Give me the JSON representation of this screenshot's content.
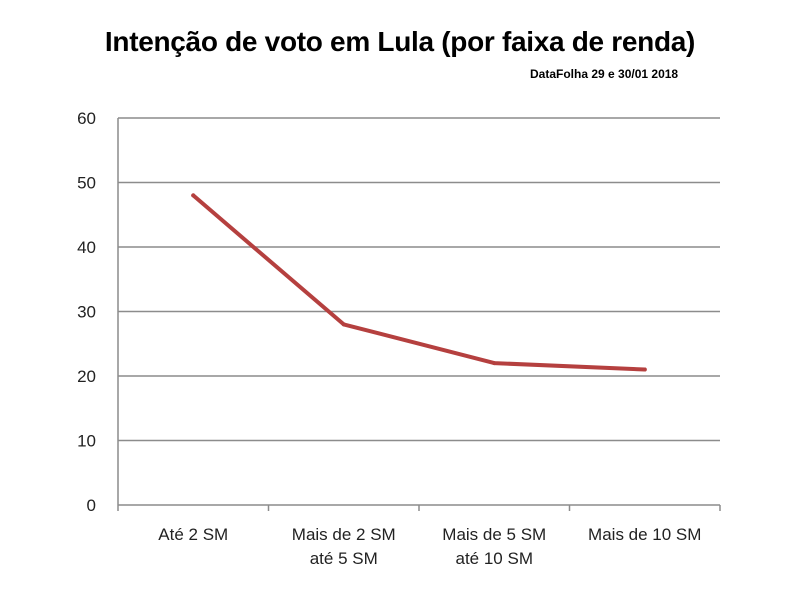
{
  "chart_data": {
    "type": "line",
    "title": "Intenção de voto em Lula (por faixa de renda)",
    "subtitle": "DataFolha 29 e 30/01 2018",
    "categories": [
      [
        "Até 2 SM"
      ],
      [
        "Mais de 2 SM",
        "até 5 SM"
      ],
      [
        "Mais de 5 SM",
        "até 10 SM"
      ],
      [
        "Mais de 10 SM"
      ]
    ],
    "series": [
      {
        "values": [
          48,
          28,
          22,
          21
        ],
        "color": "#b5403f"
      }
    ],
    "ylim": [
      0,
      60
    ],
    "yticks": [
      0,
      10,
      20,
      30,
      40,
      50,
      60
    ],
    "grid": true,
    "legend": "none"
  }
}
